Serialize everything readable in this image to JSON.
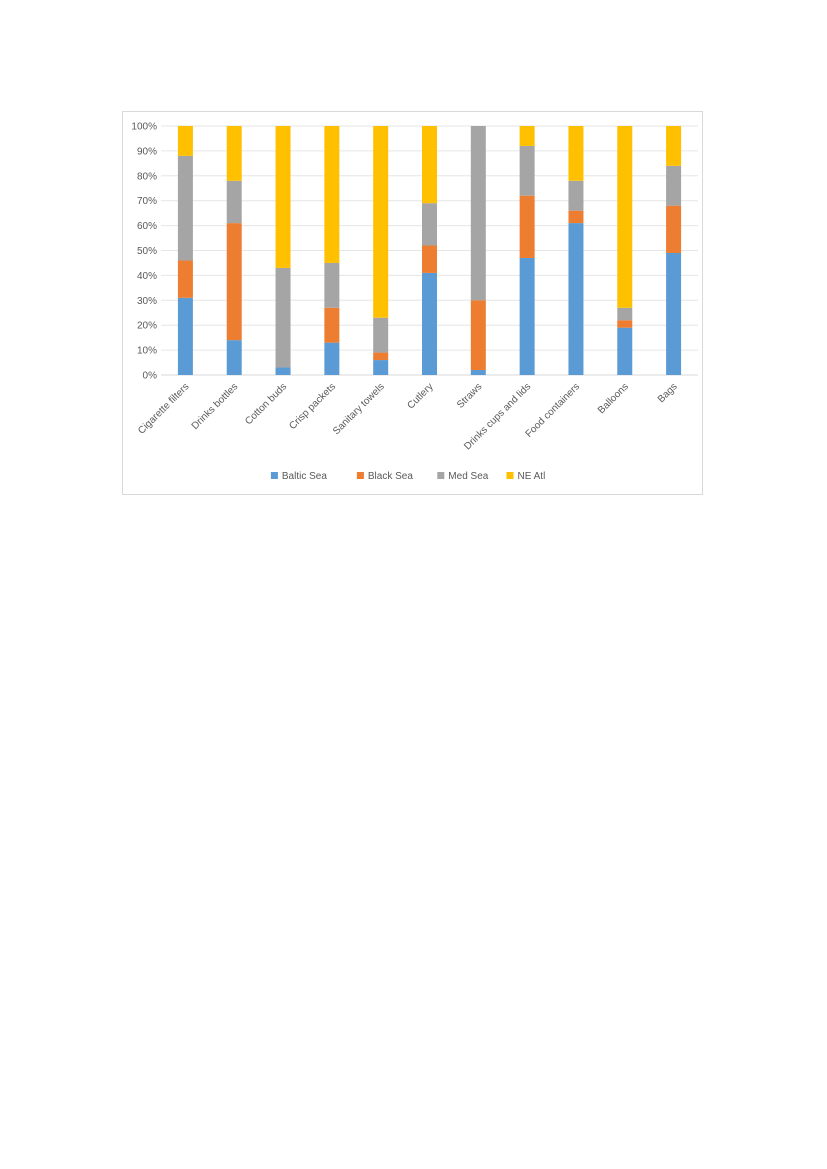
{
  "chart_data": {
    "type": "bar",
    "stacked": true,
    "normalized": true,
    "categories": [
      "Cigarette filters",
      "Drinks bottles",
      "Cotton buds",
      "Crisp packets",
      "Sanitary towels",
      "Cutlery",
      "Straws",
      "Drinks cups and lids",
      "Food containers",
      "Balloons",
      "Bags"
    ],
    "series": [
      {
        "name": "Baltic Sea",
        "color": "#5B9BD5",
        "values": [
          31,
          14,
          3,
          13,
          6,
          41,
          2,
          47,
          61,
          19,
          49
        ]
      },
      {
        "name": "Black Sea",
        "color": "#ED7D31",
        "values": [
          15,
          47,
          0,
          14,
          3,
          11,
          28,
          25,
          5,
          3,
          19
        ]
      },
      {
        "name": "Med Sea",
        "color": "#A5A5A5",
        "values": [
          42,
          17,
          40,
          18,
          14,
          17,
          70,
          20,
          12,
          5,
          16
        ]
      },
      {
        "name": "NE Atl",
        "color": "#FFC000",
        "values": [
          12,
          22,
          57,
          55,
          77,
          31,
          0,
          8,
          22,
          73,
          16
        ]
      }
    ],
    "y_ticks": [
      "0%",
      "10%",
      "20%",
      "30%",
      "40%",
      "50%",
      "60%",
      "70%",
      "80%",
      "90%",
      "100%"
    ],
    "ylim": [
      0,
      100
    ],
    "grid": true,
    "legend_position": "bottom",
    "title": "",
    "xlabel": "",
    "ylabel": ""
  }
}
